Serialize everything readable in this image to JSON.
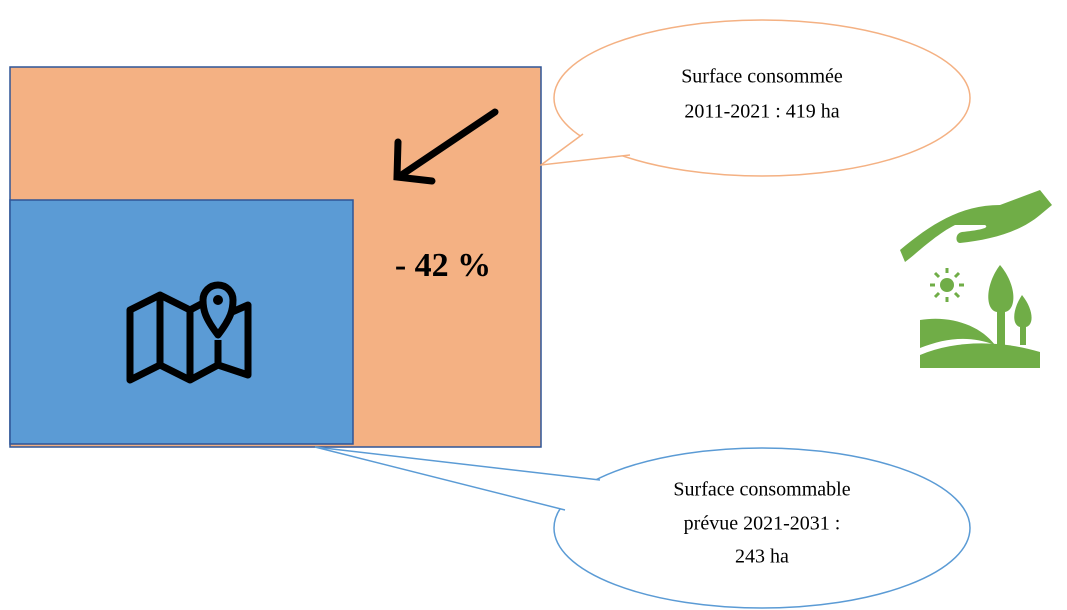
{
  "reduction_label": "- 42 %",
  "callouts": [
    {
      "lines": [
        "Surface consommée",
        "2011-2021 : 419 ha"
      ]
    },
    {
      "lines": [
        "Surface consommable",
        "prévue 2021-2031 :",
        "243 ha"
      ]
    }
  ]
}
